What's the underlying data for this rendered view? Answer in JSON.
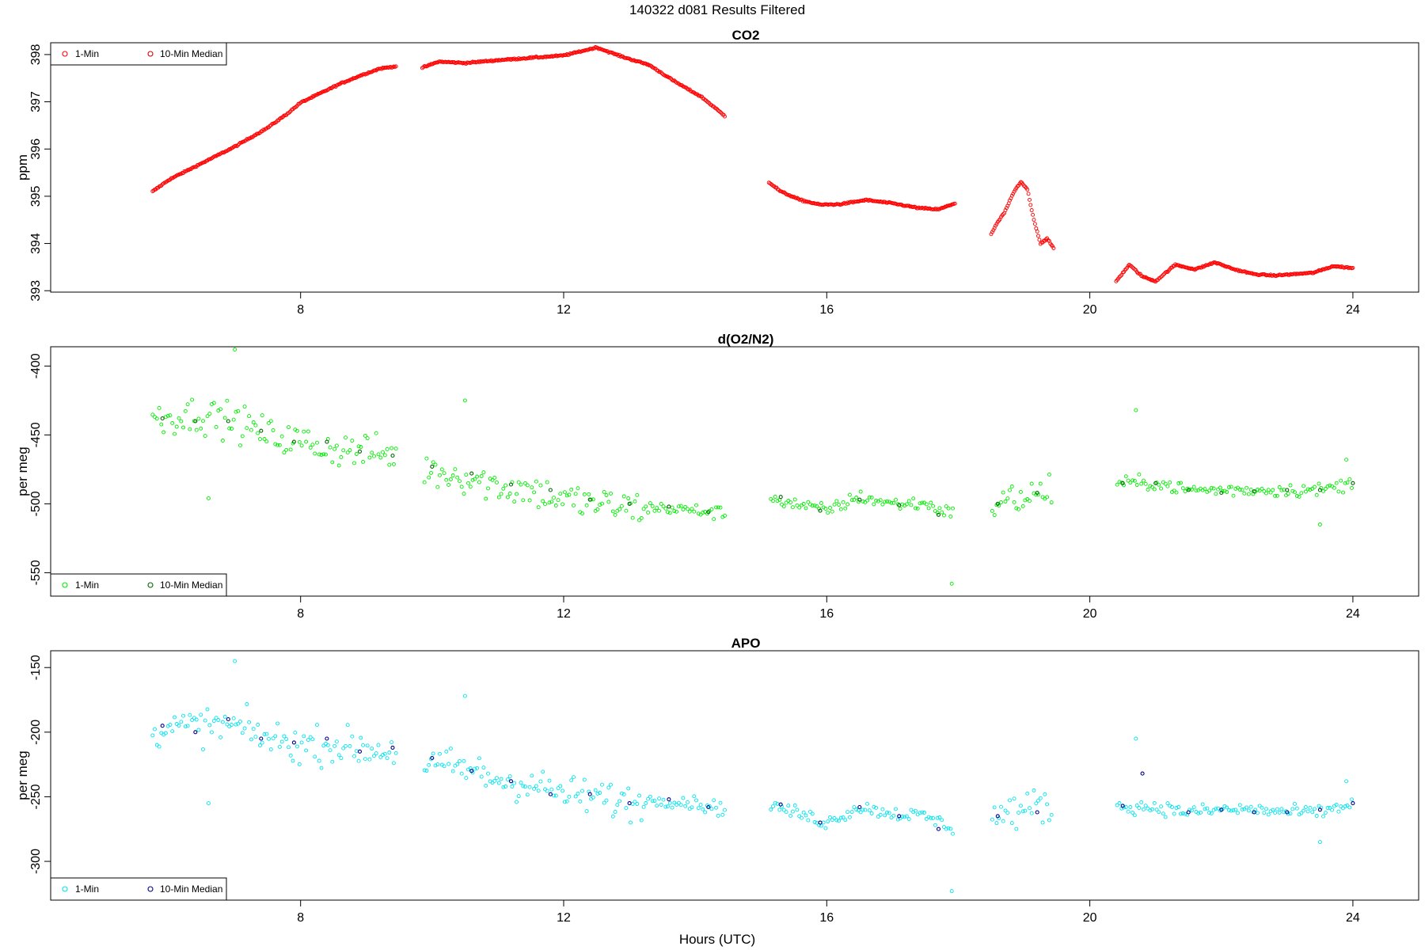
{
  "figure": {
    "title": "140322   d081   Results Filtered",
    "xlabel": "Hours (UTC)"
  },
  "chart_data": [
    {
      "type": "scatter",
      "title": "CO2",
      "xlabel": "",
      "ylabel": "ppm",
      "xlim": [
        4.2,
        25.0
      ],
      "ylim": [
        392.97,
        398.25
      ],
      "xticks": [
        8,
        12,
        16,
        20,
        24
      ],
      "yticks": [
        393,
        394,
        395,
        396,
        397,
        398
      ],
      "grid": false,
      "legend": {
        "position": "top-left",
        "entries": [
          "1-Min",
          "10-Min Median"
        ]
      },
      "colors": {
        "one_min": "#ff0000",
        "median": "#cc0000"
      },
      "series": [
        {
          "name": "1-Min",
          "segments": [
            {
              "x": [
                5.75,
                6.0,
                6.5,
                7.0,
                7.5,
                7.8,
                8.0,
                8.3,
                8.6,
                8.9,
                9.2,
                9.45
              ],
              "y": [
                395.1,
                395.35,
                395.7,
                396.05,
                396.45,
                396.75,
                396.98,
                397.18,
                397.38,
                397.55,
                397.7,
                397.75
              ]
            },
            {
              "x": [
                9.85,
                10.1,
                10.5,
                11.0,
                11.5,
                12.0,
                12.3,
                12.5,
                12.9,
                13.3,
                13.7,
                14.1,
                14.45
              ],
              "y": [
                397.72,
                397.85,
                397.82,
                397.88,
                397.93,
                397.98,
                398.08,
                398.15,
                397.95,
                397.78,
                397.42,
                397.1,
                396.7
              ]
            },
            {
              "x": [
                15.12,
                15.3,
                15.6,
                15.9,
                16.2,
                16.6,
                17.0,
                17.4,
                17.7,
                17.95
              ],
              "y": [
                395.3,
                395.1,
                394.92,
                394.82,
                394.83,
                394.92,
                394.85,
                394.75,
                394.72,
                394.85
              ]
            },
            {
              "x": [
                18.5,
                18.6,
                18.7,
                18.85,
                18.95,
                19.05,
                19.15,
                19.25,
                19.35,
                19.45
              ],
              "y": [
                394.2,
                394.45,
                394.65,
                395.1,
                395.3,
                395.15,
                394.5,
                394.0,
                394.1,
                393.9
              ]
            },
            {
              "x": [
                20.4,
                20.6,
                20.8,
                21.0,
                21.3,
                21.6,
                21.9,
                22.2,
                22.5,
                22.8,
                23.1,
                23.4,
                23.7,
                24.0
              ],
              "y": [
                393.2,
                393.55,
                393.3,
                393.2,
                393.55,
                393.45,
                393.6,
                393.45,
                393.35,
                393.32,
                393.35,
                393.38,
                393.52,
                393.48
              ]
            }
          ]
        },
        {
          "name": "10-Min Median",
          "x": [],
          "y": []
        }
      ]
    },
    {
      "type": "scatter",
      "title": "d(O2/N2)",
      "xlabel": "",
      "ylabel": "per meg",
      "xlim": [
        4.2,
        25.0
      ],
      "ylim": [
        -567,
        -386
      ],
      "xticks": [
        8,
        12,
        16,
        20,
        24
      ],
      "yticks": [
        -550,
        -500,
        -450,
        -400
      ],
      "grid": false,
      "legend": {
        "position": "bottom-left",
        "entries": [
          "1-Min",
          "10-Min Median"
        ]
      },
      "colors": {
        "one_min": "#00ee00",
        "median": "#006600"
      },
      "series": [
        {
          "name": "1-Min",
          "trend_x": [
            5.75,
            6.5,
            7.0,
            7.5,
            8.0,
            8.5,
            9.0,
            9.45,
            9.85,
            10.5,
            11.0,
            11.5,
            12.0,
            12.5,
            13.0,
            13.5,
            14.0,
            14.45,
            15.12,
            15.5,
            16.0,
            16.5,
            17.0,
            17.5,
            17.95,
            18.5,
            19.0,
            19.45,
            20.4,
            21.0,
            21.5,
            22.0,
            22.5,
            23.0,
            23.5,
            24.0
          ],
          "trend_y": [
            -438,
            -435,
            -440,
            -450,
            -455,
            -460,
            -462,
            -465,
            -475,
            -480,
            -487,
            -490,
            -497,
            -500,
            -503,
            -503,
            -505,
            -507,
            -495,
            -500,
            -505,
            -495,
            -500,
            -500,
            -508,
            -500,
            -495,
            -490,
            -485,
            -485,
            -490,
            -490,
            -490,
            -490,
            -490,
            -485
          ],
          "spread": 22,
          "outliers": [
            [
              6.6,
              -496
            ],
            [
              7.0,
              -388
            ],
            [
              10.5,
              -425
            ],
            [
              17.9,
              -558
            ],
            [
              20.7,
              -432
            ],
            [
              23.5,
              -515
            ],
            [
              23.9,
              -468
            ]
          ]
        },
        {
          "name": "10-Min Median",
          "x": [
            5.9,
            6.4,
            6.9,
            7.4,
            7.9,
            8.4,
            8.9,
            9.4,
            10.0,
            10.6,
            11.2,
            11.8,
            12.4,
            13.0,
            13.6,
            14.2,
            15.3,
            15.9,
            16.5,
            17.1,
            17.7,
            18.6,
            19.2,
            20.5,
            21.0,
            21.5,
            22.0,
            22.5,
            23.0,
            23.5,
            24.0
          ],
          "y": [
            -438,
            -440,
            -440,
            -447,
            -455,
            -455,
            -462,
            -465,
            -473,
            -478,
            -486,
            -490,
            -497,
            -500,
            -502,
            -506,
            -495,
            -505,
            -497,
            -501,
            -508,
            -500,
            -492,
            -485,
            -485,
            -490,
            -492,
            -491,
            -490,
            -490,
            -485
          ]
        }
      ]
    },
    {
      "type": "scatter",
      "title": "APO",
      "xlabel": "Hours (UTC)",
      "ylabel": "per meg",
      "xlim": [
        4.2,
        25.0
      ],
      "ylim": [
        -330,
        -137
      ],
      "xticks": [
        8,
        12,
        16,
        20,
        24
      ],
      "yticks": [
        -300,
        -250,
        -200,
        -150
      ],
      "grid": false,
      "legend": {
        "position": "bottom-left",
        "entries": [
          "1-Min",
          "10-Min Median"
        ]
      },
      "colors": {
        "one_min": "#00e5ee",
        "median": "#00008b"
      },
      "series": [
        {
          "name": "1-Min",
          "trend_x": [
            5.75,
            6.5,
            7.0,
            7.5,
            8.0,
            8.5,
            9.0,
            9.45,
            9.85,
            10.5,
            11.0,
            11.5,
            12.0,
            12.5,
            13.0,
            13.5,
            14.0,
            14.45,
            15.12,
            15.5,
            16.0,
            16.5,
            17.0,
            17.5,
            17.95,
            18.5,
            19.0,
            19.45,
            20.4,
            21.0,
            21.5,
            22.0,
            22.5,
            23.0,
            23.5,
            24.0
          ],
          "trend_y": [
            -198,
            -195,
            -195,
            -205,
            -210,
            -210,
            -213,
            -215,
            -225,
            -228,
            -237,
            -240,
            -248,
            -250,
            -255,
            -252,
            -255,
            -260,
            -256,
            -262,
            -270,
            -258,
            -263,
            -265,
            -275,
            -265,
            -260,
            -255,
            -258,
            -258,
            -262,
            -260,
            -260,
            -262,
            -262,
            -255
          ],
          "spread": 24,
          "outliers": [
            [
              6.6,
              -255
            ],
            [
              7.0,
              -145
            ],
            [
              10.5,
              -172
            ],
            [
              17.9,
              -323
            ],
            [
              20.7,
              -205
            ],
            [
              23.5,
              -285
            ],
            [
              23.9,
              -238
            ]
          ]
        },
        {
          "name": "10-Min Median",
          "x": [
            5.9,
            6.4,
            6.9,
            7.4,
            7.9,
            8.4,
            8.9,
            9.4,
            10.0,
            10.6,
            11.2,
            11.8,
            12.4,
            13.0,
            13.6,
            14.2,
            15.3,
            15.9,
            16.5,
            17.1,
            17.7,
            18.6,
            19.2,
            20.5,
            20.8,
            21.5,
            22.0,
            22.5,
            23.0,
            23.5,
            24.0
          ],
          "y": [
            -195,
            -200,
            -190,
            -205,
            -208,
            -205,
            -215,
            -212,
            -220,
            -230,
            -238,
            -248,
            -248,
            -255,
            -252,
            -258,
            -256,
            -270,
            -258,
            -265,
            -275,
            -265,
            -262,
            -257,
            -232,
            -262,
            -260,
            -262,
            -262,
            -260,
            -255
          ]
        }
      ]
    }
  ]
}
